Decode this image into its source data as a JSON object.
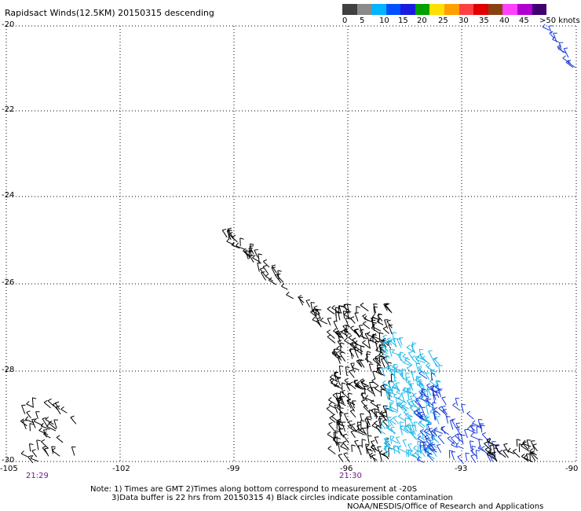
{
  "title": "Rapidsact Winds(12.5KM) 20150315 descending",
  "colorbar": {
    "colors": [
      "#404040",
      "#8a8a8a",
      "#00b4ff",
      "#0050ff",
      "#1a1ae0",
      "#00a000",
      "#ffe000",
      "#ffa000",
      "#ff4040",
      "#e00000",
      "#8a4010",
      "#ff40ff",
      "#b000d0",
      "#400070"
    ],
    "labels": [
      "0",
      "5",
      "10",
      "15",
      "20",
      "25",
      "30",
      "35",
      "40",
      "45",
      ">50 knots"
    ]
  },
  "lat_ticks": [
    "-20",
    "-22",
    "-24",
    "-26",
    "-28",
    "-30"
  ],
  "lon_ticks": [
    "-105",
    "-102",
    "-99",
    "-96",
    "-93",
    "-90"
  ],
  "times": [
    "21:29",
    "21:30"
  ],
  "notes": {
    "line1": "Note: 1) Times are GMT 2)Times along bottom correspond to measurement at -20S",
    "line2": "3)Data buffer is 22 hrs from 20150315 4) Black circles indicate possible contamination",
    "line3": "NOAA/NESDIS/Office of Research and Applications"
  }
}
